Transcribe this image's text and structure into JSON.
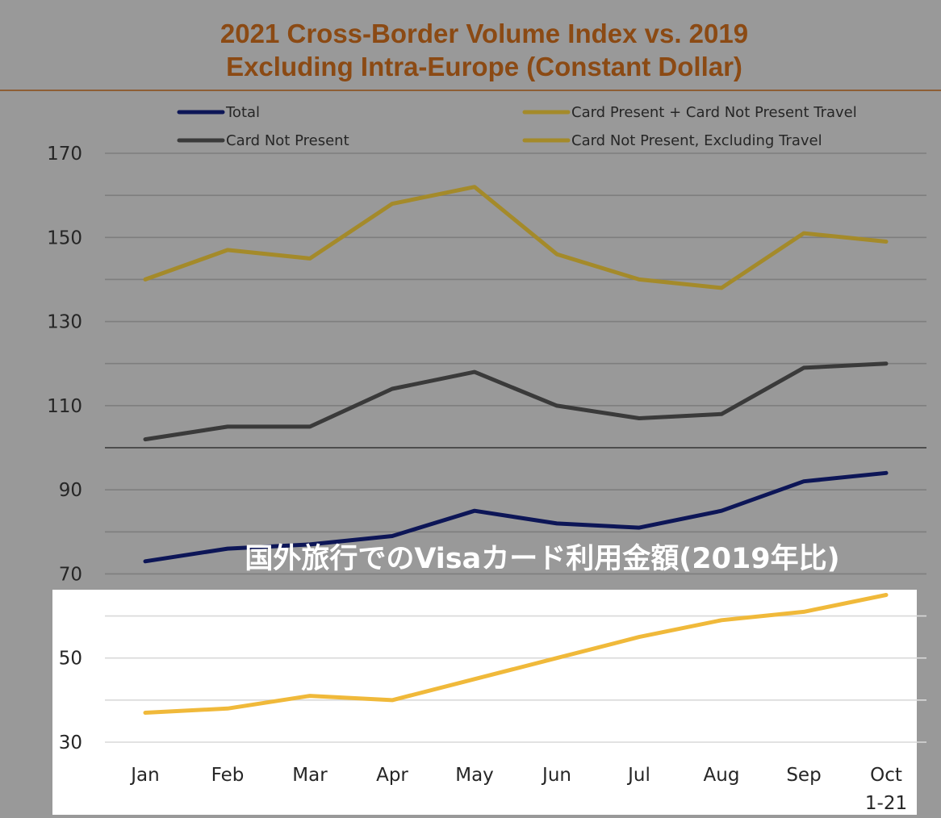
{
  "chart_data": {
    "type": "line",
    "title_lines": [
      "2021 Cross-Border Volume Index vs. 2019",
      "Excluding Intra-Europe (Constant Dollar)"
    ],
    "caption": "国外旅行でのVisaカード利用金額(2019年比)",
    "categories": [
      "Jan",
      "Feb",
      "Mar",
      "Apr",
      "May",
      "Jun",
      "Jul",
      "Aug",
      "Sep",
      "Oct\n1-21"
    ],
    "yticks": [
      30,
      50,
      70,
      90,
      110,
      130,
      150,
      170
    ],
    "ylim": [
      30,
      170
    ],
    "grid": true,
    "legend_position": "top",
    "series": [
      {
        "name": "Total",
        "color": "#0d1657",
        "values": [
          73,
          76,
          77,
          79,
          85,
          82,
          81,
          85,
          92,
          94
        ]
      },
      {
        "name": "Card Present + Card Not Present Travel",
        "color": "#f0b93a",
        "legend_color": "#a48a2a",
        "values": [
          37,
          38,
          41,
          40,
          45,
          50,
          55,
          59,
          61,
          65
        ]
      },
      {
        "name": "Card Not Present",
        "color": "#3a3a3a",
        "values": [
          102,
          105,
          105,
          114,
          118,
          110,
          107,
          108,
          119,
          120
        ]
      },
      {
        "name": "Card Not Present, Excluding Travel",
        "color": "#a48a2a",
        "values": [
          140,
          147,
          145,
          158,
          162,
          146,
          140,
          138,
          151,
          149
        ]
      }
    ]
  },
  "colors": {
    "background": "#999999",
    "title": "#8b4a14",
    "rule": "#8b4a14",
    "gridline": "#7e7e7e",
    "panel": "#ffffff",
    "panel_gridline": "#d9d9d9",
    "caption": "#ffffff"
  }
}
